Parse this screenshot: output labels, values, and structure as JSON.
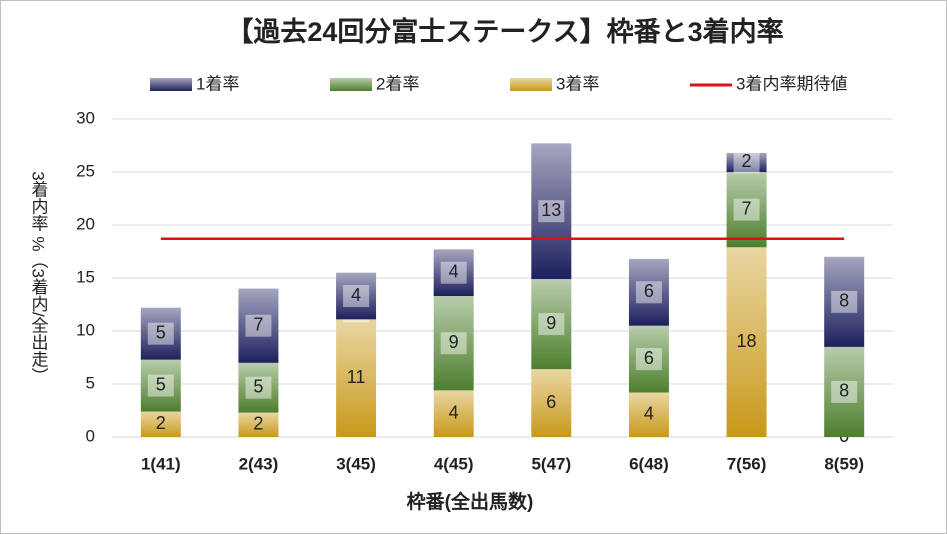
{
  "chart_data": {
    "type": "stacked_bar",
    "title": "【過去24回分富士ステークス】枠番と3着内率",
    "y_label": "3着内率 %（3着内/全出走）",
    "x_label": "枠番(全出馬数)",
    "categories": [
      "1(41)",
      "2(43)",
      "3(45)",
      "4(45)",
      "5(47)",
      "6(48)",
      "7(56)",
      "8(59)"
    ],
    "series": [
      {
        "name": "3着率",
        "color": "#c8991a",
        "values": [
          2.4,
          2.3,
          11.1,
          4.4,
          6.4,
          4.2,
          17.9,
          0
        ],
        "value_labels": [
          "2",
          "2",
          "11",
          "4",
          "6",
          "4",
          "18",
          "0"
        ]
      },
      {
        "name": "2着率",
        "color": "#4d7f2e",
        "values": [
          4.9,
          4.7,
          0,
          8.9,
          8.5,
          6.3,
          7.1,
          8.5
        ],
        "value_labels": [
          "5",
          "5",
          "0",
          "9",
          "9",
          "6",
          "7",
          "8"
        ]
      },
      {
        "name": "1着率",
        "color": "#1e205e",
        "values": [
          4.9,
          7.0,
          4.4,
          4.4,
          12.8,
          6.3,
          1.8,
          8.5
        ],
        "value_labels": [
          "5",
          "7",
          "4",
          "4",
          "13",
          "6",
          "2",
          "8"
        ]
      }
    ],
    "reference_line": {
      "name": "3着内率期待値",
      "color": "#e01010",
      "value": 18.7
    },
    "ylim": [
      0,
      30
    ],
    "yticks": [
      0,
      5,
      10,
      15,
      20,
      25,
      30
    ],
    "grid": true
  }
}
